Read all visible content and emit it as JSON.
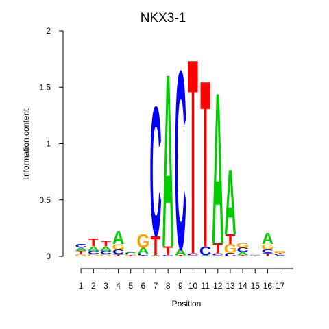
{
  "chart_data": {
    "type": "sequence-logo",
    "title": "NKX3-1",
    "xlabel": "Position",
    "ylabel": "Information content",
    "ylim": [
      0,
      2
    ],
    "yticks": [
      "0",
      "0.5",
      "1",
      "1.5",
      "2"
    ],
    "positions": [
      "1",
      "2",
      "3",
      "4",
      "5",
      "6",
      "7",
      "8",
      "9",
      "10",
      "11",
      "12",
      "13",
      "14",
      "15",
      "16",
      "17"
    ],
    "colors": {
      "A": "#00cc00",
      "C": "#0000ff",
      "G": "#ffa500",
      "T": "#ff0000"
    },
    "stacks": [
      [
        {
          "b": "G",
          "h": 0.02
        },
        {
          "b": "T",
          "h": 0.03
        },
        {
          "b": "A",
          "h": 0.03
        },
        {
          "b": "C",
          "h": 0.03
        }
      ],
      [
        {
          "b": "G",
          "h": 0.02
        },
        {
          "b": "C",
          "h": 0.03
        },
        {
          "b": "A",
          "h": 0.04
        },
        {
          "b": "T",
          "h": 0.07
        }
      ],
      [
        {
          "b": "G",
          "h": 0.02
        },
        {
          "b": "C",
          "h": 0.03
        },
        {
          "b": "A",
          "h": 0.04
        },
        {
          "b": "T",
          "h": 0.05
        }
      ],
      [
        {
          "b": "T",
          "h": 0.02
        },
        {
          "b": "C",
          "h": 0.04
        },
        {
          "b": "G",
          "h": 0.05
        },
        {
          "b": "A",
          "h": 0.12
        }
      ],
      [
        {
          "b": "T",
          "h": 0.01
        },
        {
          "b": "G",
          "h": 0.01
        },
        {
          "b": "C",
          "h": 0.01
        },
        {
          "b": "A",
          "h": 0.01
        }
      ],
      [
        {
          "b": "T",
          "h": 0.01
        },
        {
          "b": "C",
          "h": 0.01
        },
        {
          "b": "A",
          "h": 0.06
        },
        {
          "b": "G",
          "h": 0.12
        }
      ],
      [
        {
          "b": "A",
          "h": 0.01
        },
        {
          "b": "T",
          "h": 0.18
        },
        {
          "b": "C",
          "h": 1.18
        }
      ],
      [
        {
          "b": "C",
          "h": 0.01
        },
        {
          "b": "T",
          "h": 0.08
        },
        {
          "b": "A",
          "h": 1.58
        }
      ],
      [
        {
          "b": "T",
          "h": 0.01
        },
        {
          "b": "A",
          "h": 0.06
        },
        {
          "b": "C",
          "h": 1.63
        }
      ],
      [
        {
          "b": "G",
          "h": 0.01
        },
        {
          "b": "C",
          "h": 0.02
        },
        {
          "b": "T",
          "h": 1.78
        }
      ],
      [
        {
          "b": "A",
          "h": 0.01
        },
        {
          "b": "C",
          "h": 0.08
        },
        {
          "b": "T",
          "h": 1.52
        }
      ],
      [
        {
          "b": "G",
          "h": 0.01
        },
        {
          "b": "C",
          "h": 0.02
        },
        {
          "b": "T",
          "h": 0.09
        },
        {
          "b": "A",
          "h": 1.38
        }
      ],
      [
        {
          "b": "C",
          "h": 0.03
        },
        {
          "b": "G",
          "h": 0.08
        },
        {
          "b": "T",
          "h": 0.09
        },
        {
          "b": "A",
          "h": 0.59
        }
      ],
      [
        {
          "b": "T",
          "h": 0.01
        },
        {
          "b": "A",
          "h": 0.03
        },
        {
          "b": "C",
          "h": 0.04
        },
        {
          "b": "G",
          "h": 0.04
        }
      ],
      [
        {
          "b": "T",
          "h": 0.005
        },
        {
          "b": "G",
          "h": 0.005
        },
        {
          "b": "C",
          "h": 0.005
        },
        {
          "b": "A",
          "h": 0.005
        }
      ],
      [
        {
          "b": "T",
          "h": 0.03
        },
        {
          "b": "C",
          "h": 0.03
        },
        {
          "b": "G",
          "h": 0.05
        },
        {
          "b": "A",
          "h": 0.1
        }
      ],
      [
        {
          "b": "A",
          "h": 0.01
        },
        {
          "b": "C",
          "h": 0.01
        },
        {
          "b": "T",
          "h": 0.01
        },
        {
          "b": "G",
          "h": 0.02
        }
      ]
    ]
  }
}
